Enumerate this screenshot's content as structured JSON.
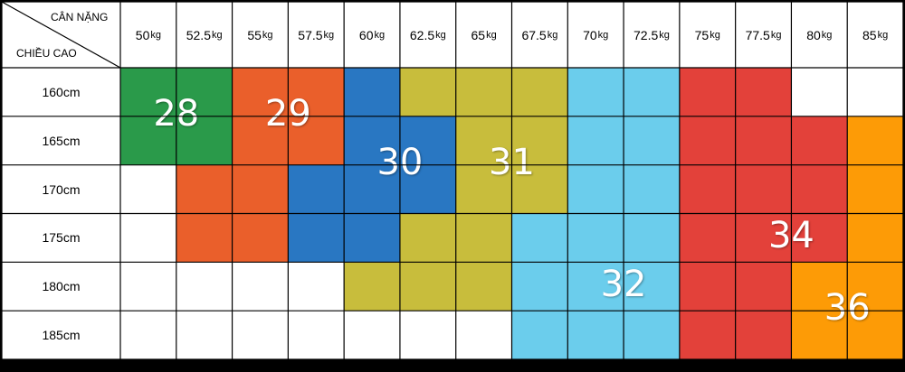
{
  "chart_data": {
    "type": "table",
    "corner": {
      "weight_label": "CÂN NẶNG",
      "height_label": "CHIỀU CAO"
    },
    "weights": [
      "50",
      "52.5",
      "55",
      "57.5",
      "60",
      "62.5",
      "65",
      "67.5",
      "70",
      "72.5",
      "75",
      "77.5",
      "80",
      "85"
    ],
    "weight_unit": "kg",
    "heights": [
      "160cm",
      "165cm",
      "170cm",
      "175cm",
      "180cm",
      "185cm"
    ],
    "sizes": [
      {
        "label": "28",
        "color": "#2a9a4a"
      },
      {
        "label": "29",
        "color": "#ea5f2b"
      },
      {
        "label": "30",
        "color": "#2977c2"
      },
      {
        "label": "31",
        "color": "#c8bd3c"
      },
      {
        "label": "32",
        "color": "#6bcdec"
      },
      {
        "label": "34",
        "color": "#e3413a"
      },
      {
        "label": "36",
        "color": "#fd9b06"
      }
    ],
    "grid": [
      [
        "28",
        "28",
        "29",
        "29",
        "30",
        "31",
        "31",
        "31",
        "32",
        "32",
        "34",
        "34",
        "",
        ""
      ],
      [
        "28",
        "28",
        "29",
        "29",
        "30",
        "30",
        "31",
        "31",
        "32",
        "32",
        "34",
        "34",
        "34",
        "36"
      ],
      [
        "",
        "29",
        "29",
        "30",
        "30",
        "30",
        "31",
        "31",
        "32",
        "32",
        "34",
        "34",
        "34",
        "36"
      ],
      [
        "",
        "29",
        "29",
        "30",
        "30",
        "31",
        "31",
        "32",
        "32",
        "32",
        "34",
        "34",
        "34",
        "36"
      ],
      [
        "",
        "",
        "",
        "",
        "31",
        "31",
        "31",
        "32",
        "32",
        "32",
        "34",
        "34",
        "36",
        "36"
      ],
      [
        "",
        "",
        "",
        "",
        "",
        "",
        "",
        "32",
        "32",
        "32",
        "34",
        "34",
        "36",
        "36"
      ]
    ],
    "grid_lines": true
  }
}
